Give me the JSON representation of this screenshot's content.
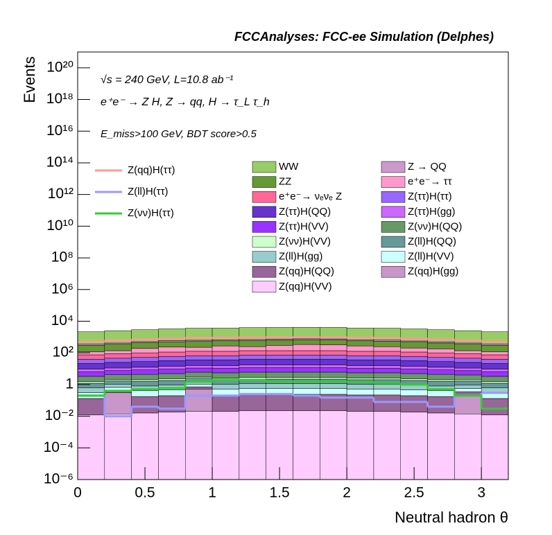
{
  "chart_data": {
    "type": "stacked-histogram",
    "title": "FCCAnalyses: FCC-ee Simulation (Delphes)",
    "annotations": [
      "√s = 240 GeV, L=10.8 ab⁻¹",
      "e⁺e⁻ → Z H, Z → qq, H → τ_L τ_h",
      "E_miss>100 GeV, BDT score>0.5"
    ],
    "x_label": "Neutral hadron θ",
    "y_label": "Events",
    "log_y": true,
    "bins": [
      0,
      0.2,
      0.4,
      0.6,
      0.8,
      1,
      1.2,
      1.4,
      1.6,
      1.8,
      2,
      2.2,
      2.4,
      2.6,
      2.8,
      3,
      3.2
    ],
    "xlim": [
      0,
      3.2
    ],
    "xticks": [
      0,
      0.5,
      1,
      1.5,
      2,
      2.5,
      3
    ],
    "ylim": [
      1e-06,
      1e+21
    ],
    "yticks": [
      {
        "value": 1e-06,
        "label": "10⁻⁶"
      },
      {
        "value": 0.0001,
        "label": "10⁻⁴"
      },
      {
        "value": 0.01,
        "label": "10⁻²"
      },
      1,
      {
        "value": 100,
        "label": "10²"
      },
      {
        "value": 10000,
        "label": "10⁴"
      },
      {
        "value": 1000000.0,
        "label": "10⁶"
      },
      {
        "value": 100000000.0,
        "label": "10⁸"
      },
      {
        "value": 10000000000.0,
        "label": "10¹⁰"
      },
      {
        "value": 1000000000000.0,
        "label": "10¹²"
      },
      {
        "value": 100000000000000.0,
        "label": "10¹⁴"
      },
      {
        "value": 1e+16,
        "label": "10¹⁶"
      },
      {
        "value": 1e+18,
        "label": "10¹⁸"
      },
      {
        "value": 1e+20,
        "label": "10²⁰"
      }
    ],
    "series": [
      {
        "name": "WW",
        "color": "#99cc66",
        "values": [
          1800,
          2100,
          2400,
          2700,
          3000,
          3000,
          3300,
          3300,
          3300,
          3300,
          3000,
          3000,
          2700,
          2400,
          2100,
          1800
        ]
      },
      {
        "name": "Z → QQ",
        "color": "#cc99cc",
        "values": [
          60,
          70,
          80,
          90,
          100,
          100,
          110,
          110,
          110,
          110,
          100,
          100,
          90,
          80,
          70,
          60
        ]
      },
      {
        "name": "ZZ",
        "color": "#669933",
        "values": [
          180,
          210,
          240,
          270,
          300,
          300,
          330,
          330,
          330,
          330,
          300,
          300,
          270,
          240,
          210,
          180
        ]
      },
      {
        "name": "e⁺e⁻→ ττ",
        "color": "#ff99cc",
        "values": [
          40,
          50,
          90,
          120,
          100,
          150,
          110,
          160,
          200,
          180,
          150,
          120,
          90,
          80,
          50,
          40
        ]
      },
      {
        "name": "e⁺e⁻→ νₑνₑ Z",
        "color": "#ff6699",
        "values": [
          36,
          42,
          48,
          54,
          60,
          60,
          66,
          66,
          66,
          66,
          60,
          60,
          54,
          48,
          42,
          36
        ]
      },
      {
        "name": "Z(ττ)H(ττ)",
        "color": "#9966ff",
        "values": [
          18,
          21,
          24,
          27,
          30,
          30,
          33,
          33,
          33,
          33,
          30,
          30,
          27,
          24,
          21,
          18
        ]
      },
      {
        "name": "Z(ττ)H(QQ)",
        "color": "#6633cc",
        "values": [
          12,
          14,
          16,
          18,
          20,
          20,
          22,
          22,
          22,
          22,
          20,
          20,
          18,
          16,
          14,
          12
        ]
      },
      {
        "name": "Z(ττ)H(gg)",
        "color": "#cc66ff",
        "values": [
          3,
          3.5,
          4,
          4.5,
          5,
          5,
          5.5,
          5.5,
          5.5,
          5.5,
          5,
          5,
          4.5,
          4,
          3.5,
          3
        ]
      },
      {
        "name": "Z(ττ)H(VV)",
        "color": "#9933ff",
        "values": [
          3,
          3.5,
          4,
          4.5,
          5,
          5,
          5.5,
          5.5,
          5.5,
          5.5,
          5,
          5,
          4.5,
          4,
          3.5,
          3
        ]
      },
      {
        "name": "Z(νν)H(QQ)",
        "color": "#669966",
        "values": [
          1.8,
          2.1,
          2.4,
          2.7,
          3,
          3,
          3.3,
          3.3,
          3.3,
          3.3,
          3,
          3,
          2.7,
          2.4,
          2.1,
          1.8
        ]
      },
      {
        "name": "Z(νν)H(VV)",
        "color": "#ccffcc",
        "values": [
          0.3,
          0.35,
          0.4,
          0.45,
          0.5,
          0.5,
          0.55,
          0.55,
          0.55,
          0.55,
          0.5,
          0.5,
          0.45,
          0.4,
          0.35,
          0.3
        ]
      },
      {
        "name": "Z(ll)H(QQ)",
        "color": "#669999",
        "values": [
          0.6,
          0.7,
          0.8,
          0.9,
          1,
          1,
          1.1,
          1.1,
          1.1,
          1.1,
          1,
          1,
          0.9,
          0.8,
          0.7,
          0.6
        ]
      },
      {
        "name": "Z(ll)H(gg)",
        "color": "#99cccc",
        "values": [
          0.3,
          0.35,
          0.4,
          0.45,
          0.5,
          0.5,
          0.55,
          0.55,
          0.55,
          0.55,
          0.5,
          0.5,
          0.45,
          0.4,
          0.35,
          0.3
        ]
      },
      {
        "name": "Z(ll)H(VV)",
        "color": "#ccffff",
        "values": [
          0.18,
          0.21,
          0.24,
          0.27,
          0.3,
          0.3,
          0.33,
          0.33,
          0.33,
          0.33,
          0.3,
          0.3,
          0.27,
          0.24,
          0.21,
          0.18
        ]
      },
      {
        "name": "Z(qq)H(QQ)",
        "color": "#996699",
        "values": [
          0.12,
          0.14,
          0.16,
          0.18,
          0.2,
          0.2,
          0.22,
          0.22,
          0.22,
          0.22,
          0.2,
          0.2,
          0.18,
          0.16,
          0.14,
          0.12
        ]
      },
      {
        "name": "Z(qq)H(gg)",
        "color": "#c896c8",
        "values": [
          0,
          0.3,
          0,
          0,
          0.5,
          0,
          0,
          0,
          0,
          0,
          0,
          0,
          0,
          0,
          0.2,
          0
        ]
      },
      {
        "name": "Z(qq)H(VV)",
        "color": "#ffccff",
        "values": [
          0.012,
          0.014,
          0.016,
          0.018,
          0.02,
          0.02,
          0.022,
          0.022,
          0.022,
          0.022,
          0.02,
          0.02,
          0.018,
          0.016,
          0.014,
          0.012
        ]
      }
    ],
    "lines": [
      {
        "name": "Z(qq)H(ττ)",
        "color": "#ff9999",
        "values": [
          500,
          600,
          700,
          800,
          900,
          900,
          950,
          950,
          950,
          950,
          900,
          850,
          800,
          700,
          600,
          500
        ]
      },
      {
        "name": "Z(ll)H(ττ)",
        "color": "#9999ff",
        "values": [
          0.2,
          0.01,
          0.04,
          0.03,
          0.2,
          0.2,
          0.25,
          0.25,
          0.2,
          0.15,
          0.15,
          0.08,
          0.08,
          0.04,
          0.2,
          0.3
        ]
      },
      {
        "name": "Z(νν)H(ττ)",
        "color": "#33cc33",
        "values": [
          0.2,
          0.4,
          0.5,
          0.6,
          1.5,
          2,
          2,
          1.5,
          1.5,
          1.5,
          1.5,
          1.2,
          1,
          0.5,
          0.2,
          0.03
        ]
      }
    ]
  }
}
